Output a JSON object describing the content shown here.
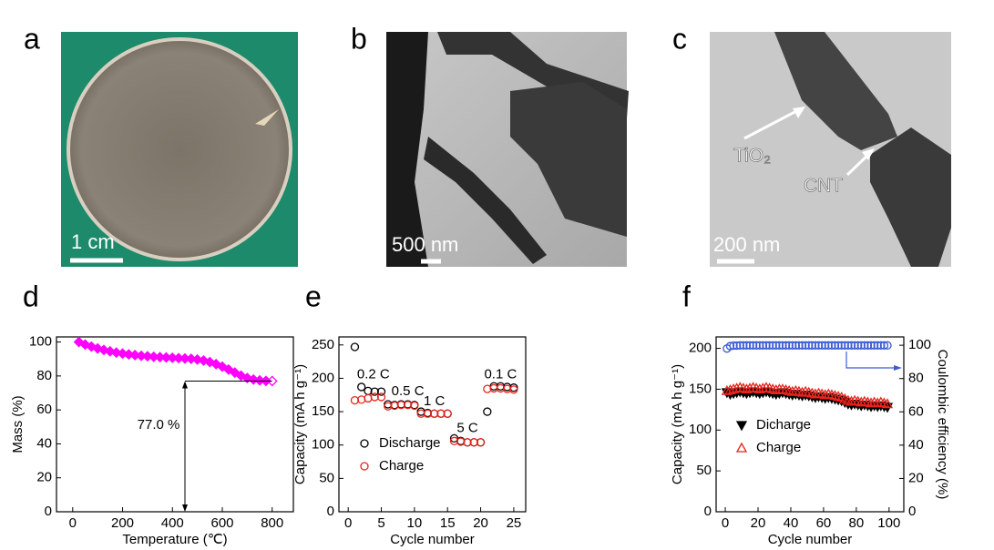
{
  "panels": [
    {
      "label": "a",
      "scale_bar": "1 cm"
    },
    {
      "label": "b",
      "scale_bar": "500 nm"
    },
    {
      "label": "c",
      "scale_bar": "200 nm",
      "annotations": [
        "TiO₂",
        "CNT"
      ]
    }
  ],
  "chart_data": [
    {
      "type": "line",
      "panel_label": "d",
      "xlabel": "Temperature (℃)",
      "ylabel": "Mass (%)",
      "color": "#ff00ff",
      "x": [
        25,
        50,
        75,
        100,
        125,
        150,
        175,
        200,
        225,
        250,
        275,
        300,
        325,
        350,
        375,
        400,
        425,
        450,
        475,
        500,
        525,
        550,
        575,
        600,
        625,
        650,
        675,
        700,
        725,
        750,
        775,
        800
      ],
      "values": [
        100,
        98.5,
        97.3,
        96.2,
        95.3,
        94.5,
        93.8,
        93.2,
        92.7,
        92.3,
        91.9,
        91.6,
        91.3,
        91.1,
        90.9,
        90.7,
        90.5,
        90.3,
        90.1,
        89.7,
        89.1,
        88.2,
        87.0,
        85.5,
        83.8,
        82.0,
        80.2,
        78.8,
        77.9,
        77.4,
        77.1,
        77.0
      ],
      "xlim": [
        -65,
        885
      ],
      "ylim": [
        0,
        103
      ],
      "xticks": [
        0,
        200,
        400,
        600,
        800
      ],
      "yticks": [
        0,
        20,
        40,
        60,
        80,
        100
      ],
      "annotation": "77.0 %"
    },
    {
      "type": "scatter",
      "panel_label": "e",
      "xlabel": "Cycle number",
      "ylabel": "Capacity (mA h g⁻¹)",
      "x": [
        1,
        2,
        3,
        4,
        5,
        6,
        7,
        8,
        9,
        10,
        11,
        12,
        13,
        14,
        15,
        16,
        17,
        18,
        19,
        20,
        21,
        22,
        23,
        24,
        25
      ],
      "series": [
        {
          "name": "Discharge",
          "color": "#000000",
          "values": [
            247,
            187,
            181,
            180,
            180,
            161,
            160,
            161,
            161,
            160,
            150,
            148,
            147,
            147,
            147,
            110,
            106,
            104,
            104,
            104,
            150,
            188,
            188,
            187,
            186
          ]
        },
        {
          "name": "Charge",
          "color": "#e8231c",
          "values": [
            167,
            168,
            170,
            172,
            172,
            158,
            159,
            160,
            160,
            159,
            147,
            147,
            147,
            147,
            147,
            106,
            105,
            104,
            104,
            104,
            184,
            185,
            185,
            184,
            183
          ]
        }
      ],
      "xlim": [
        -1.4,
        26.8
      ],
      "ylim": [
        0,
        262
      ],
      "xticks": [
        0,
        5,
        10,
        15,
        20,
        25
      ],
      "yticks": [
        0,
        50,
        100,
        150,
        200,
        250
      ],
      "annotations": [
        "0.2 C",
        "0.5 C",
        "1 C",
        "5 C",
        "0.1 C"
      ]
    },
    {
      "type": "scatter",
      "panel_label": "f",
      "xlabel": "Cycle number",
      "ylabel": "Capacity (mA h g⁻¹)",
      "y2label": "Coulombic efficiency (%)",
      "x": [
        1,
        3,
        5,
        7,
        9,
        11,
        13,
        15,
        17,
        19,
        21,
        23,
        25,
        27,
        29,
        31,
        33,
        35,
        37,
        39,
        41,
        43,
        45,
        47,
        49,
        51,
        53,
        55,
        57,
        59,
        61,
        63,
        65,
        67,
        69,
        71,
        73,
        75,
        77,
        79,
        81,
        83,
        85,
        87,
        89,
        91,
        93,
        95,
        97,
        99
      ],
      "series": [
        {
          "name": "Dicharge",
          "color": "#000000",
          "values": [
            146,
            144,
            145,
            146,
            147,
            146,
            145,
            146,
            147,
            146,
            145,
            146,
            147,
            146,
            145,
            144,
            145,
            146,
            145,
            144,
            143,
            144,
            143,
            142,
            143,
            142,
            141,
            140,
            141,
            140,
            139,
            140,
            139,
            138,
            137,
            136,
            134,
            132,
            131,
            132,
            131,
            130,
            131,
            130,
            129,
            130,
            129,
            130,
            129,
            128
          ]
        },
        {
          "name": "Charge",
          "color": "#e8231c",
          "values": [
            148,
            149,
            150,
            151,
            152,
            151,
            150,
            151,
            152,
            151,
            150,
            151,
            152,
            151,
            150,
            149,
            150,
            150,
            149,
            148,
            147,
            148,
            147,
            146,
            147,
            146,
            145,
            144,
            145,
            144,
            143,
            144,
            143,
            142,
            141,
            140,
            138,
            136,
            135,
            136,
            135,
            134,
            135,
            134,
            133,
            134,
            133,
            134,
            133,
            132
          ]
        },
        {
          "color": "#3c5bd6",
          "axis": "y2",
          "values": [
            98,
            99.5,
            99.8,
            99.8,
            99.9,
            99.9,
            99.9,
            99.9,
            99.9,
            99.9,
            99.9,
            99.9,
            99.9,
            99.9,
            99.9,
            99.9,
            99.9,
            99.9,
            99.9,
            99.9,
            99.9,
            99.9,
            99.9,
            99.9,
            99.9,
            99.9,
            99.9,
            99.9,
            99.9,
            99.9,
            99.9,
            99.9,
            99.9,
            99.9,
            99.9,
            99.9,
            99.9,
            99.9,
            99.9,
            99.9,
            99.9,
            99.9,
            99.9,
            99.9,
            99.9,
            99.9,
            99.9,
            99.9,
            99.9,
            99.9
          ]
        }
      ],
      "xlim": [
        -5.6,
        109
      ],
      "ylim": [
        0,
        214
      ],
      "y2lim": [
        0,
        105
      ],
      "xticks": [
        0,
        20,
        40,
        60,
        80,
        100
      ],
      "yticks": [
        0,
        50,
        100,
        150,
        200
      ],
      "y2ticks": [
        0,
        20,
        40,
        60,
        80,
        100
      ]
    }
  ]
}
